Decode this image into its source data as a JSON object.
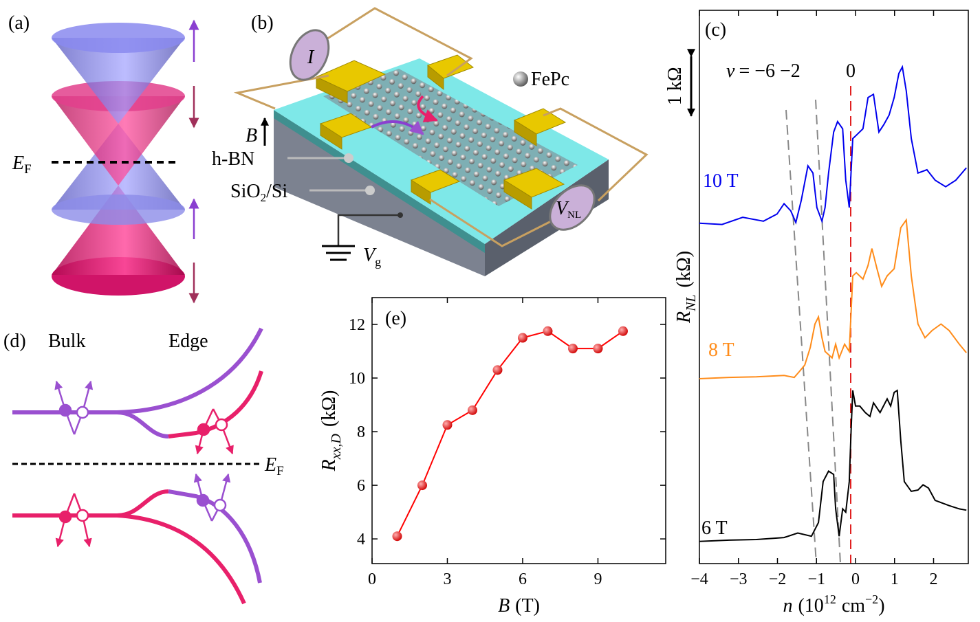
{
  "panel_labels": [
    "(a)",
    "(b)",
    "(c)",
    "(d)",
    "(e)"
  ],
  "panel_a": {
    "fermi": {
      "main": "E",
      "sub": "F"
    }
  },
  "panel_b": {
    "current": "I",
    "field": "B",
    "hbn": "h-BN",
    "substrate": {
      "main": "SiO",
      "sub": "2",
      "rest": "/Si"
    },
    "molecule": "FePc",
    "voltage": {
      "main": "V",
      "sub": "NL"
    },
    "gate": {
      "main": "V",
      "sub": "g"
    }
  },
  "panel_d": {
    "bulk": "Bulk",
    "edge": "Edge",
    "fermi": {
      "main": "E",
      "sub": "F"
    }
  },
  "chart_data": [
    {
      "type": "line",
      "x": [
        1,
        2,
        3,
        4,
        5,
        6,
        7,
        8,
        9,
        10
      ],
      "values": [
        4.1,
        6.0,
        8.25,
        8.8,
        10.3,
        11.5,
        11.75,
        11.1,
        11.1,
        11.75
      ],
      "color": "#ff0000",
      "xlim": [
        0,
        11.7
      ],
      "ylim": [
        3.08,
        13
      ],
      "xticks": [
        0,
        3,
        6,
        9
      ],
      "yticks": [
        4,
        6,
        8,
        10,
        12
      ],
      "x_label": {
        "symbol": "B",
        "unit": "(T)"
      },
      "y_label": {
        "symbol": "R",
        "sub": "xx,D",
        "unit": "(kΩ)"
      }
    },
    {
      "type": "line",
      "xlim": [
        -4,
        2.89
      ],
      "ylim": [
        0,
        8.5
      ],
      "xticks": [
        {
          "value": -4,
          "label": "−4"
        },
        {
          "value": -3,
          "label": "−3"
        },
        {
          "value": -2,
          "label": "−2"
        },
        {
          "value": -1,
          "label": "−1"
        },
        0,
        1,
        2
      ],
      "x_label": {
        "symbol": "n",
        "open": "(10",
        "exp": "12",
        "unit": "cm",
        "unit_exp": "−2",
        "close": ")"
      },
      "y_label": {
        "symbol": "R",
        "sub": "NL",
        "unit": "(kΩ)"
      },
      "scale_bar": {
        "value": 1,
        "label": "1 kΩ"
      },
      "filling_label": {
        "symbol": "v",
        "text": "= −6 −2",
        "zero": "0"
      },
      "series": [
        {
          "name": "10 T",
          "color": "#0000ee",
          "x": [
            -4.0,
            -3.42,
            -2.89,
            -2.36,
            -2.01,
            -1.83,
            -1.66,
            -1.53,
            -1.39,
            -1.22,
            -1.09,
            -0.99,
            -0.86,
            -0.78,
            -0.69,
            -0.56,
            -0.46,
            -0.33,
            -0.25,
            -0.16,
            -0.07,
            0.02,
            0.19,
            0.32,
            0.46,
            0.6,
            0.72,
            0.86,
            0.99,
            1.11,
            1.2,
            1.3,
            1.43,
            1.6,
            1.83,
            2.04,
            2.31,
            2.57,
            2.84
          ],
          "values": [
            5.23,
            5.21,
            5.32,
            5.26,
            5.37,
            5.53,
            5.42,
            5.24,
            5.58,
            6.11,
            6.0,
            5.47,
            5.26,
            5.47,
            6.0,
            6.63,
            6.79,
            6.68,
            5.89,
            5.47,
            6.53,
            6.58,
            6.68,
            7.16,
            7.21,
            6.63,
            6.74,
            6.89,
            7.16,
            7.53,
            7.63,
            7.26,
            6.53,
            6.0,
            6.05,
            5.89,
            5.79,
            5.89,
            6.08
          ]
        },
        {
          "name": "8 T",
          "color": "#ff8c1a",
          "x": [
            -4.0,
            -3.24,
            -2.54,
            -1.83,
            -1.57,
            -1.44,
            -1.3,
            -1.16,
            -1.04,
            -0.95,
            -0.86,
            -0.78,
            -0.6,
            -0.51,
            -0.42,
            -0.28,
            -0.16,
            -0.07,
            0.02,
            0.19,
            0.32,
            0.42,
            0.55,
            0.67,
            0.81,
            0.99,
            1.16,
            1.3,
            1.43,
            1.6,
            1.78,
            1.96,
            2.19,
            2.4,
            2.66,
            2.84
          ],
          "values": [
            2.84,
            2.86,
            2.87,
            2.89,
            2.86,
            2.95,
            3.05,
            3.32,
            3.68,
            3.79,
            3.47,
            3.26,
            3.16,
            3.37,
            3.16,
            3.37,
            3.26,
            4.42,
            4.47,
            4.37,
            4.58,
            4.84,
            4.53,
            4.26,
            4.42,
            4.53,
            5.16,
            5.28,
            4.42,
            3.68,
            3.47,
            3.58,
            3.68,
            3.58,
            3.37,
            3.24
          ]
        },
        {
          "name": "6 T",
          "color": "#000000",
          "x": [
            -4.0,
            -3.24,
            -2.54,
            -1.83,
            -1.48,
            -1.13,
            -0.95,
            -0.83,
            -0.69,
            -0.56,
            -0.51,
            -0.42,
            -0.33,
            -0.25,
            -0.16,
            -0.11,
            -0.07,
            0.0,
            0.11,
            0.25,
            0.37,
            0.46,
            0.63,
            0.81,
            0.9,
            0.99,
            1.07,
            1.16,
            1.25,
            1.43,
            1.6,
            1.73,
            1.87,
            2.04,
            2.4,
            2.66,
            2.84
          ],
          "values": [
            0.34,
            0.36,
            0.37,
            0.4,
            0.47,
            0.42,
            0.63,
            1.26,
            1.42,
            1.37,
            0.84,
            0.42,
            0.84,
            0.79,
            1.26,
            2.11,
            2.66,
            2.42,
            2.42,
            2.32,
            2.26,
            2.47,
            2.32,
            2.53,
            2.42,
            2.63,
            2.66,
            1.89,
            1.26,
            1.11,
            1.13,
            1.21,
            1.16,
            0.97,
            0.89,
            0.84,
            0.82
          ]
        }
      ]
    }
  ]
}
